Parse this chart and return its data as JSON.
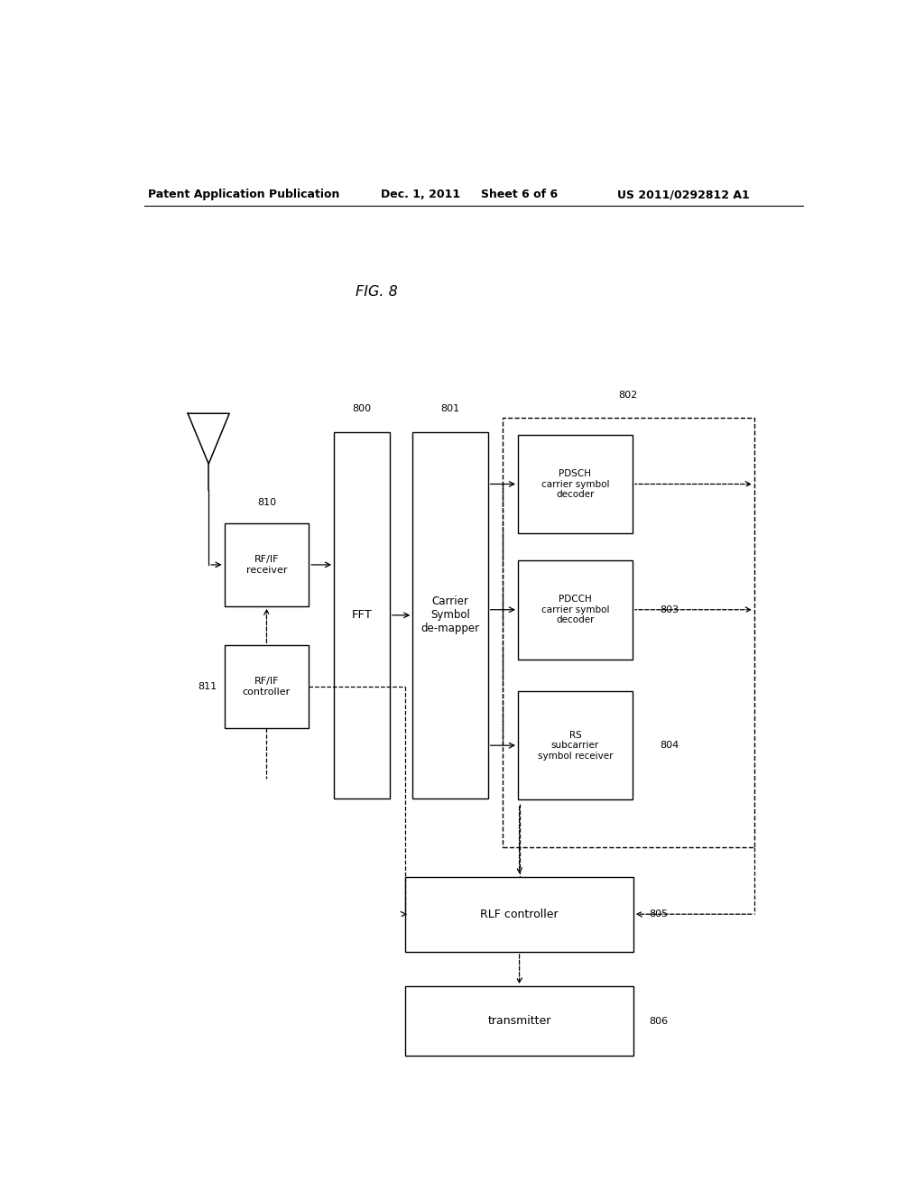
{
  "header_left": "Patent Application Publication",
  "header_date": "Dec. 1, 2011",
  "header_sheet": "Sheet 6 of 6",
  "header_patent": "US 2011/0292812 A1",
  "fig_label": "FIG. 8",
  "bg": "#ffffff"
}
